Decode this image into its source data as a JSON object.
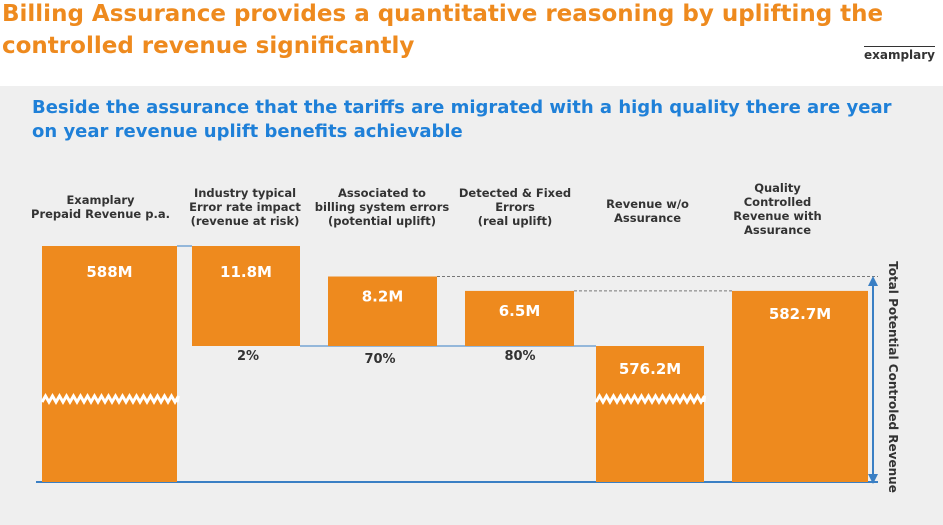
{
  "header": {
    "title": "Billing Assurance provides a quantitative reasoning by uplifting the controlled revenue significantly",
    "tag": "examplary"
  },
  "subtitle": "Beside the assurance that the tariffs are migrated with a high quality there are year on year revenue uplift benefits achievable",
  "colors": {
    "bar": "#ee8a1e",
    "title": "#ee8a1e",
    "subtitle": "#1f80d8",
    "axis": "#3a7fc4"
  },
  "chart_data": {
    "type": "bar",
    "columns": [
      {
        "label": [
          "Examplary",
          "Prepaid Revenue p.a."
        ],
        "value_label": "588M",
        "percent": ""
      },
      {
        "label": [
          "Industry typical",
          "Error rate impact",
          "(revenue at risk)"
        ],
        "value_label": "11.8M",
        "percent": "2%"
      },
      {
        "label": [
          "Associated to",
          "billing system errors",
          "(potential uplift)"
        ],
        "value_label": "8.2M",
        "percent": "70%"
      },
      {
        "label": [
          "Detected & Fixed",
          "Errors",
          "(real uplift)"
        ],
        "value_label": "6.5M",
        "percent": "80%"
      },
      {
        "label": [
          "Revenue w/o",
          "Assurance"
        ],
        "value_label": "576.2M",
        "percent": ""
      },
      {
        "label": [
          "Quality",
          "Controlled",
          "Revenue with",
          "Assurance"
        ],
        "value_label": "582.7M",
        "percent": ""
      }
    ],
    "values": [
      588,
      11.8,
      8.2,
      6.5,
      576.2,
      582.7
    ],
    "side_label": "Total Potential Controled Revenue"
  }
}
